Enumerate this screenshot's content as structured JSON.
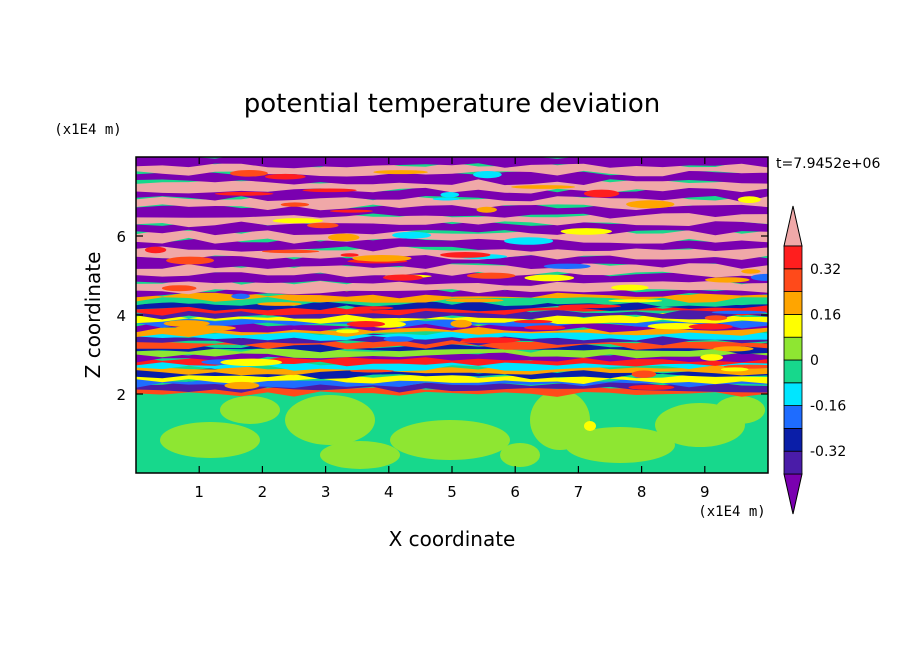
{
  "chart_data": {
    "type": "heatmap",
    "title": "potential temperature deviation",
    "xlabel": "X coordinate",
    "ylabel": "Z coordinate",
    "x_unit": "(x1E4 m)",
    "y_unit": "(x1E4 m)",
    "time_label": "t=7.9452e+06",
    "xlim": [
      0,
      10
    ],
    "ylim": [
      0,
      8
    ],
    "x_ticks": [
      1,
      2,
      3,
      4,
      5,
      6,
      7,
      8,
      9
    ],
    "y_ticks": [
      2,
      4,
      6
    ],
    "x_tick_labels": [
      "1",
      "2",
      "3",
      "4",
      "5",
      "6",
      "7",
      "8",
      "9"
    ],
    "y_tick_labels": [
      "2",
      "4",
      "6"
    ],
    "colorbar": {
      "levels": [
        -0.4,
        -0.32,
        -0.24,
        -0.16,
        -0.08,
        0,
        0.08,
        0.16,
        0.24,
        0.32,
        0.4
      ],
      "tick_values": [
        -0.32,
        -0.16,
        0,
        0.16,
        0.32
      ],
      "tick_labels": [
        "-0.32",
        "-0.16",
        "0",
        "0.16",
        "0.32"
      ],
      "colors": [
        "#7a00b0",
        "#4a1ca8",
        "#0a1ea8",
        "#1e6cff",
        "#00e6ff",
        "#17d88c",
        "#8ee632",
        "#ffff00",
        "#ffa500",
        "#ff4a1a",
        "#ff1e1e",
        "#f0a8a8"
      ],
      "extend": "both"
    },
    "field_description_bands": [
      {
        "z_range": [
          0,
          2
        ],
        "dominant_value": 0.04
      },
      {
        "z_range": [
          2,
          4.5
        ],
        "dominant_value": 0
      },
      {
        "z_range": [
          4.5,
          8
        ],
        "dominant_value": 0.36
      }
    ]
  }
}
